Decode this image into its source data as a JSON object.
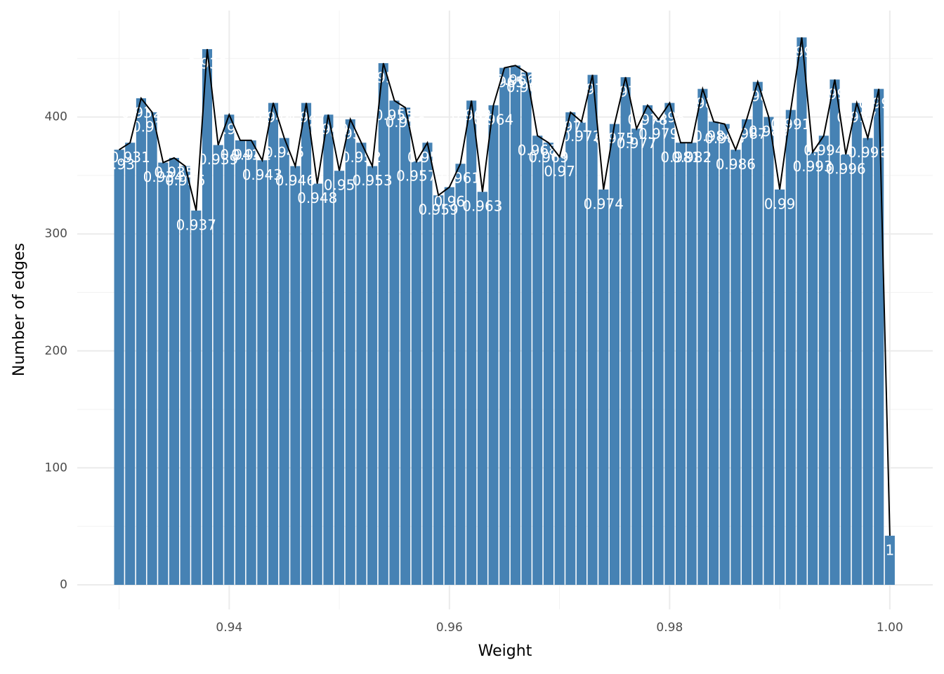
{
  "chart_data": {
    "type": "bar",
    "x_label": "Weight",
    "y_label": "Number of edges",
    "x": [
      0.93,
      0.931,
      0.932,
      0.933,
      0.934,
      0.935,
      0.936,
      0.937,
      0.938,
      0.939,
      0.94,
      0.941,
      0.942,
      0.943,
      0.944,
      0.945,
      0.946,
      0.947,
      0.948,
      0.949,
      0.95,
      0.951,
      0.952,
      0.953,
      0.954,
      0.955,
      0.956,
      0.957,
      0.958,
      0.959,
      0.96,
      0.961,
      0.962,
      0.963,
      0.964,
      0.965,
      0.966,
      0.967,
      0.968,
      0.969,
      0.97,
      0.971,
      0.972,
      0.973,
      0.974,
      0.975,
      0.976,
      0.977,
      0.978,
      0.979,
      0.98,
      0.981,
      0.982,
      0.983,
      0.984,
      0.985,
      0.986,
      0.987,
      0.988,
      0.989,
      0.99,
      0.991,
      0.992,
      0.993,
      0.994,
      0.995,
      0.996,
      0.997,
      0.998,
      0.999,
      1
    ],
    "values": [
      372,
      378,
      416,
      404,
      361,
      365,
      358,
      320,
      458,
      376,
      402,
      380,
      380,
      363,
      412,
      382,
      358,
      412,
      343,
      402,
      354,
      398,
      378,
      358,
      446,
      414,
      408,
      362,
      378,
      333,
      340,
      360,
      414,
      336,
      410,
      442,
      444,
      438,
      384,
      378,
      366,
      404,
      396,
      436,
      338,
      394,
      434,
      390,
      410,
      398,
      412,
      378,
      378,
      424,
      396,
      394,
      372,
      398,
      430,
      400,
      338,
      406,
      468,
      370,
      384,
      432,
      368,
      412,
      382,
      424,
      42
    ],
    "color": "#4682b4",
    "line_color": "#000000",
    "xlim": [
      0.9262,
      1.0039
    ],
    "ylim": [
      -21,
      491
    ],
    "xticks": [
      0.94,
      0.96,
      0.98,
      {
        "value": 1,
        "label": "1.00"
      }
    ],
    "xminorticks": [
      0.93,
      0.95,
      0.97,
      0.99
    ],
    "yticks": [
      0,
      100,
      200,
      300,
      400
    ],
    "yminorticks": [
      50,
      150,
      250,
      350,
      450
    ],
    "grid": true
  }
}
